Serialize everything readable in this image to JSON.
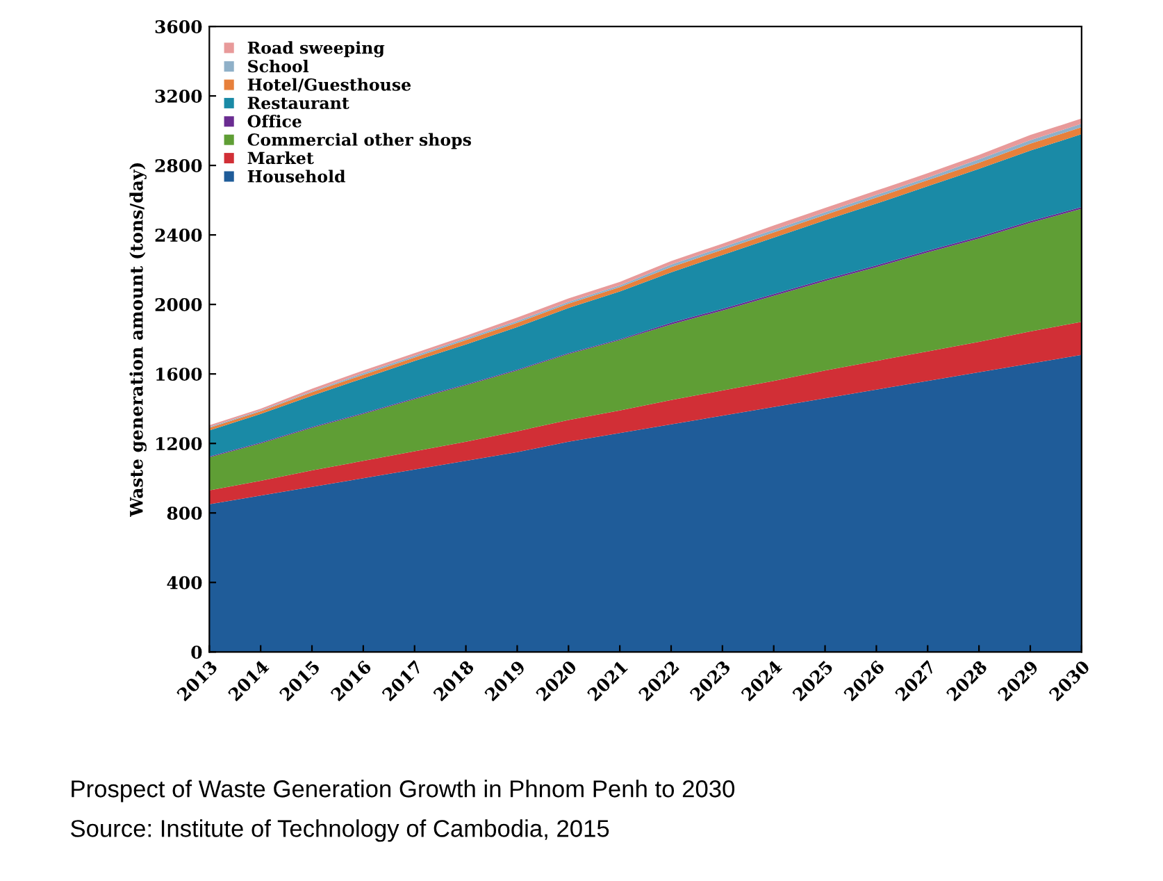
{
  "chart_data": {
    "type": "area",
    "stacked": true,
    "ylabel": "Waste generation amount (tons/day)",
    "categories": [
      "2013",
      "2014",
      "2015",
      "2016",
      "2017",
      "2018",
      "2019",
      "2020",
      "2021",
      "2022",
      "2023",
      "2024",
      "2025",
      "2026",
      "2027",
      "2028",
      "2029",
      "2030"
    ],
    "series": [
      {
        "name": "Household",
        "color": "#1f5c99",
        "values": [
          850,
          900,
          950,
          1000,
          1050,
          1100,
          1150,
          1210,
          1260,
          1310,
          1360,
          1410,
          1460,
          1510,
          1560,
          1610,
          1660,
          1710
        ]
      },
      {
        "name": "Market",
        "color": "#d12f36",
        "values": [
          80,
          85,
          95,
          100,
          105,
          110,
          120,
          125,
          130,
          140,
          145,
          150,
          160,
          165,
          170,
          175,
          185,
          190
        ]
      },
      {
        "name": "Commercial other shops",
        "color": "#5f9e35",
        "values": [
          190,
          215,
          245,
          270,
          300,
          325,
          350,
          380,
          405,
          435,
          460,
          490,
          515,
          540,
          570,
          595,
          625,
          650
        ]
      },
      {
        "name": "Office",
        "color": "#6a2c91",
        "values": [
          5,
          5,
          5,
          5,
          5,
          5,
          5,
          5,
          5,
          10,
          10,
          10,
          10,
          10,
          10,
          10,
          10,
          10
        ]
      },
      {
        "name": "Restaurant",
        "color": "#1a8aa6",
        "values": [
          150,
          165,
          180,
          200,
          215,
          230,
          245,
          260,
          275,
          290,
          310,
          325,
          340,
          355,
          370,
          390,
          405,
          420
        ]
      },
      {
        "name": "Hotel/Guesthouse",
        "color": "#e7803b",
        "values": [
          15,
          15,
          20,
          20,
          20,
          25,
          25,
          25,
          25,
          30,
          30,
          30,
          30,
          35,
          35,
          35,
          40,
          40
        ]
      },
      {
        "name": "School",
        "color": "#8fb0c8",
        "values": [
          5,
          5,
          5,
          10,
          10,
          10,
          10,
          10,
          10,
          15,
          15,
          15,
          15,
          15,
          15,
          20,
          20,
          20
        ]
      },
      {
        "name": "Road sweeping",
        "color": "#e89a9a",
        "values": [
          10,
          10,
          15,
          15,
          15,
          15,
          20,
          20,
          20,
          20,
          20,
          25,
          25,
          25,
          25,
          25,
          30,
          30
        ]
      }
    ],
    "ylim": [
      0,
      3600
    ],
    "yticks": [
      0,
      400,
      800,
      1200,
      1600,
      2000,
      2400,
      2800,
      3200,
      3600
    ],
    "grid": false,
    "legend": "top left",
    "annotations": [
      "Prospect of Waste Generation Growth in Phnom Penh to 2030",
      "Source: Institute of Technology of Cambodia, 2015"
    ]
  }
}
